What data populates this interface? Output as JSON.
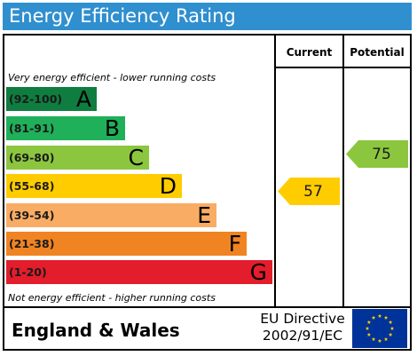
{
  "title": "Energy Efficiency Rating",
  "headers": {
    "current": "Current",
    "potential": "Potential"
  },
  "notes": {
    "top": "Very energy efficient - lower running costs",
    "bottom": "Not energy efficient - higher running costs"
  },
  "bands": [
    {
      "range": "(92-100)",
      "letter": "A",
      "color": "#0f7d3f"
    },
    {
      "range": "(81-91)",
      "letter": "B",
      "color": "#1fb059"
    },
    {
      "range": "(69-80)",
      "letter": "C",
      "color": "#8cc63f"
    },
    {
      "range": "(55-68)",
      "letter": "D",
      "color": "#ffcc00"
    },
    {
      "range": "(39-54)",
      "letter": "E",
      "color": "#f9ac64"
    },
    {
      "range": "(21-38)",
      "letter": "F",
      "color": "#f08422"
    },
    {
      "range": "(1-20)",
      "letter": "G",
      "color": "#e31d2b"
    }
  ],
  "current": {
    "value": "57",
    "band": "D",
    "color": "#ffcc00"
  },
  "potential": {
    "value": "75",
    "band": "C",
    "color": "#8cc63f"
  },
  "footer": {
    "region": "England & Wales",
    "directive_line1": "EU Directive",
    "directive_line2": "2002/91/EC",
    "flag_icon": "eu-flag-icon",
    "flag_color": "#003399",
    "star_color": "#ffcc00"
  }
}
